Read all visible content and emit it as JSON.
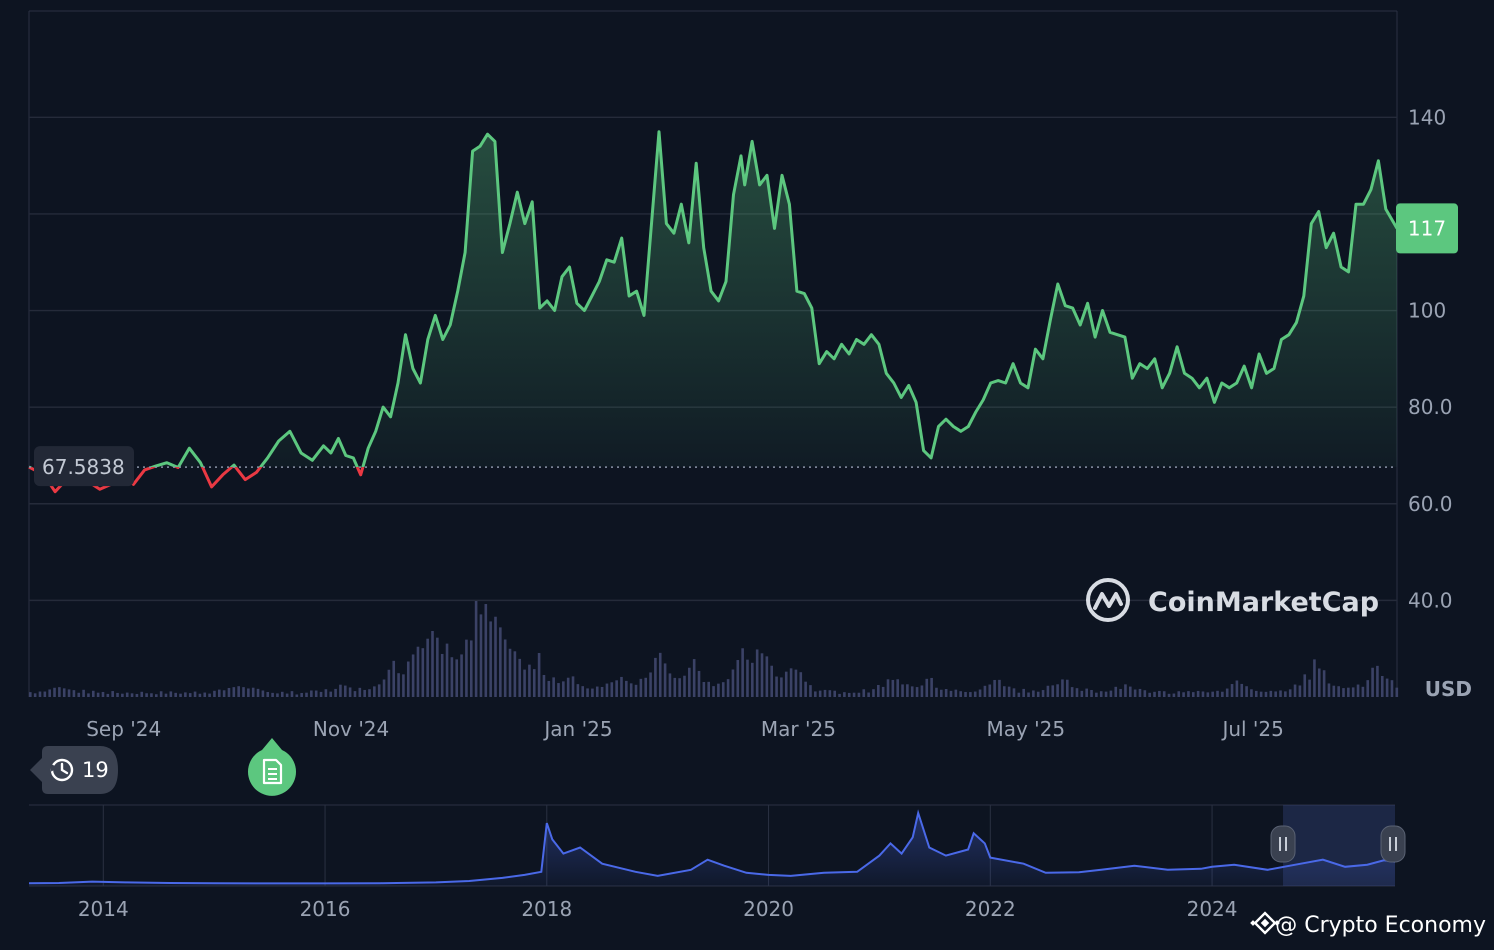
{
  "chart_data": {
    "type": "line",
    "y_axis": {
      "ticks": [
        "40.0",
        "60.0",
        "80.0",
        "100",
        "140"
      ],
      "tick_values": [
        40,
        60,
        80,
        100,
        140
      ],
      "range": [
        20,
        162
      ],
      "unit": "USD",
      "gridlines_at": [
        40,
        60,
        80,
        100,
        120,
        140
      ]
    },
    "x_axis": {
      "ticks": [
        "Sep '24",
        "Nov '24",
        "Jan '25",
        "Mar '25",
        "May '25",
        "Jul '25"
      ],
      "tick_dates": [
        "2024-09-01",
        "2024-11-01",
        "2025-01-01",
        "2025-03-01",
        "2025-05-01",
        "2025-07-01"
      ],
      "range": [
        "2024-08-20",
        "2025-08-22"
      ]
    },
    "reference_price": 67.5838,
    "reference_label": "67.5838",
    "current_price": 117,
    "current_label": "117",
    "colors": {
      "up": "#5cc77f",
      "down": "#ea3943",
      "volume": "#3b4266",
      "navigator": "#4a69e8",
      "badge": "#5cc77f"
    },
    "series": [
      {
        "points": [
          [
            "2024-08-20",
            67.6
          ],
          [
            "2024-08-24",
            66.0
          ],
          [
            "2024-08-27",
            62.5
          ],
          [
            "2024-08-30",
            65.0
          ],
          [
            "2024-09-02",
            66.5
          ],
          [
            "2024-09-05",
            64.5
          ],
          [
            "2024-09-08",
            63.0
          ],
          [
            "2024-09-11",
            64.0
          ],
          [
            "2024-09-14",
            66.5
          ],
          [
            "2024-09-17",
            64.0
          ],
          [
            "2024-09-20",
            67.0
          ],
          [
            "2024-09-23",
            67.8
          ],
          [
            "2024-09-26",
            68.5
          ],
          [
            "2024-09-29",
            67.5
          ],
          [
            "2024-10-02",
            71.5
          ],
          [
            "2024-10-05",
            68.5
          ],
          [
            "2024-10-08",
            63.5
          ],
          [
            "2024-10-11",
            66.0
          ],
          [
            "2024-10-14",
            68.0
          ],
          [
            "2024-10-17",
            65.0
          ],
          [
            "2024-10-20",
            66.5
          ],
          [
            "2024-10-23",
            69.5
          ],
          [
            "2024-10-26",
            73.0
          ],
          [
            "2024-10-29",
            75.0
          ],
          [
            "2024-11-01",
            70.5
          ],
          [
            "2024-11-04",
            69.0
          ],
          [
            "2024-11-07",
            72.0
          ],
          [
            "2024-11-09",
            70.5
          ],
          [
            "2024-11-11",
            73.5
          ],
          [
            "2024-11-13",
            70.0
          ],
          [
            "2024-11-15",
            69.5
          ],
          [
            "2024-11-17",
            66.0
          ],
          [
            "2024-11-19",
            71.5
          ],
          [
            "2024-11-21",
            75.0
          ],
          [
            "2024-11-23",
            80.0
          ],
          [
            "2024-11-25",
            78.0
          ],
          [
            "2024-11-27",
            85.0
          ],
          [
            "2024-11-29",
            95.0
          ],
          [
            "2024-12-01",
            88.0
          ],
          [
            "2024-12-03",
            85.0
          ],
          [
            "2024-12-05",
            94.0
          ],
          [
            "2024-12-07",
            99.0
          ],
          [
            "2024-12-09",
            94.0
          ],
          [
            "2024-12-11",
            97.0
          ],
          [
            "2024-12-13",
            104.0
          ],
          [
            "2024-12-15",
            112.0
          ],
          [
            "2024-12-17",
            133.0
          ],
          [
            "2024-12-19",
            134.0
          ],
          [
            "2024-12-21",
            136.5
          ],
          [
            "2024-12-23",
            135.0
          ],
          [
            "2024-12-25",
            112.0
          ],
          [
            "2024-12-27",
            118.0
          ],
          [
            "2024-12-29",
            124.5
          ],
          [
            "2024-12-31",
            118.0
          ],
          [
            "2025-01-02",
            122.5
          ],
          [
            "2025-01-04",
            100.5
          ],
          [
            "2025-01-06",
            102.0
          ],
          [
            "2025-01-08",
            100.0
          ],
          [
            "2025-01-10",
            107.0
          ],
          [
            "2025-01-12",
            109.0
          ],
          [
            "2025-01-14",
            101.5
          ],
          [
            "2025-01-16",
            100.0
          ],
          [
            "2025-01-18",
            103.0
          ],
          [
            "2025-01-20",
            106.0
          ],
          [
            "2025-01-22",
            110.5
          ],
          [
            "2025-01-24",
            110.0
          ],
          [
            "2025-01-26",
            115.0
          ],
          [
            "2025-01-28",
            103.0
          ],
          [
            "2025-01-30",
            104.0
          ],
          [
            "2025-02-01",
            99.0
          ],
          [
            "2025-02-03",
            118.0
          ],
          [
            "2025-02-05",
            137.0
          ],
          [
            "2025-02-07",
            118.0
          ],
          [
            "2025-02-09",
            116.0
          ],
          [
            "2025-02-11",
            122.0
          ],
          [
            "2025-02-13",
            114.0
          ],
          [
            "2025-02-15",
            130.5
          ],
          [
            "2025-02-17",
            113.0
          ],
          [
            "2025-02-19",
            104.0
          ],
          [
            "2025-02-21",
            102.0
          ],
          [
            "2025-02-23",
            106.0
          ],
          [
            "2025-02-25",
            124.0
          ],
          [
            "2025-02-27",
            132.0
          ],
          [
            "2025-02-28",
            126.0
          ],
          [
            "2025-03-02",
            135.0
          ],
          [
            "2025-03-04",
            126.0
          ],
          [
            "2025-03-06",
            128.0
          ],
          [
            "2025-03-08",
            117.0
          ],
          [
            "2025-03-10",
            128.0
          ],
          [
            "2025-03-12",
            122.0
          ],
          [
            "2025-03-14",
            104.0
          ],
          [
            "2025-03-16",
            103.5
          ],
          [
            "2025-03-18",
            100.5
          ],
          [
            "2025-03-20",
            89.0
          ],
          [
            "2025-03-22",
            91.5
          ],
          [
            "2025-03-24",
            90.0
          ],
          [
            "2025-03-26",
            93.0
          ],
          [
            "2025-03-28",
            91.0
          ],
          [
            "2025-03-30",
            94.0
          ],
          [
            "2025-04-01",
            93.0
          ],
          [
            "2025-04-03",
            95.0
          ],
          [
            "2025-04-05",
            93.0
          ],
          [
            "2025-04-07",
            87.0
          ],
          [
            "2025-04-09",
            85.0
          ],
          [
            "2025-04-11",
            82.0
          ],
          [
            "2025-04-13",
            84.5
          ],
          [
            "2025-04-15",
            81.0
          ],
          [
            "2025-04-17",
            71.0
          ],
          [
            "2025-04-19",
            69.5
          ],
          [
            "2025-04-21",
            76.0
          ],
          [
            "2025-04-23",
            77.5
          ],
          [
            "2025-04-25",
            76.0
          ],
          [
            "2025-04-27",
            75.0
          ],
          [
            "2025-04-29",
            76.0
          ],
          [
            "2025-05-01",
            79.0
          ],
          [
            "2025-05-03",
            81.5
          ],
          [
            "2025-05-05",
            85.0
          ],
          [
            "2025-05-07",
            85.5
          ],
          [
            "2025-05-09",
            85.0
          ],
          [
            "2025-05-11",
            89.0
          ],
          [
            "2025-05-13",
            85.0
          ],
          [
            "2025-05-15",
            84.0
          ],
          [
            "2025-05-17",
            92.0
          ],
          [
            "2025-05-19",
            90.0
          ],
          [
            "2025-05-21",
            98.0
          ],
          [
            "2025-05-23",
            105.5
          ],
          [
            "2025-05-25",
            101.0
          ],
          [
            "2025-05-27",
            100.5
          ],
          [
            "2025-05-29",
            97.0
          ],
          [
            "2025-05-31",
            101.5
          ],
          [
            "2025-06-02",
            94.5
          ],
          [
            "2025-06-04",
            100.0
          ],
          [
            "2025-06-06",
            95.5
          ],
          [
            "2025-06-08",
            95.0
          ],
          [
            "2025-06-10",
            94.5
          ],
          [
            "2025-06-12",
            86.0
          ],
          [
            "2025-06-14",
            89.0
          ],
          [
            "2025-06-16",
            88.0
          ],
          [
            "2025-06-18",
            90.0
          ],
          [
            "2025-06-20",
            84.0
          ],
          [
            "2025-06-22",
            87.0
          ],
          [
            "2025-06-24",
            92.5
          ],
          [
            "2025-06-26",
            87.0
          ],
          [
            "2025-06-28",
            86.0
          ],
          [
            "2025-06-30",
            84.0
          ],
          [
            "2025-07-02",
            86.0
          ],
          [
            "2025-07-04",
            81.0
          ],
          [
            "2025-07-06",
            85.0
          ],
          [
            "2025-07-08",
            84.0
          ],
          [
            "2025-07-10",
            85.0
          ],
          [
            "2025-07-12",
            88.5
          ],
          [
            "2025-07-14",
            84.0
          ],
          [
            "2025-07-16",
            91.0
          ],
          [
            "2025-07-18",
            87.0
          ],
          [
            "2025-07-20",
            88.0
          ],
          [
            "2025-07-22",
            94.0
          ],
          [
            "2025-07-24",
            95.0
          ],
          [
            "2025-07-26",
            97.5
          ],
          [
            "2025-07-28",
            103.0
          ],
          [
            "2025-07-30",
            118.0
          ],
          [
            "2025-08-01",
            120.5
          ],
          [
            "2025-08-03",
            113.0
          ],
          [
            "2025-08-05",
            116.0
          ],
          [
            "2025-08-07",
            109.0
          ],
          [
            "2025-08-09",
            108.0
          ],
          [
            "2025-08-11",
            122.0
          ],
          [
            "2025-08-13",
            122.0
          ],
          [
            "2025-08-15",
            125.0
          ],
          [
            "2025-08-17",
            131.0
          ],
          [
            "2025-08-19",
            121.0
          ],
          [
            "2025-08-22",
            117.0
          ]
        ]
      }
    ]
  },
  "volume_spikes": [
    [
      "2024-08-28",
      0.9
    ],
    [
      "2024-10-15",
      1.1
    ],
    [
      "2024-11-12",
      1.0
    ],
    [
      "2024-11-25",
      2.5
    ],
    [
      "2024-12-01",
      4.0
    ],
    [
      "2024-12-06",
      5.0
    ],
    [
      "2024-12-10",
      3.4
    ],
    [
      "2024-12-18",
      9.3
    ],
    [
      "2024-12-22",
      6.7
    ],
    [
      "2024-12-27",
      4.2
    ],
    [
      "2025-01-03",
      3.5
    ],
    [
      "2025-01-12",
      2.0
    ],
    [
      "2025-01-25",
      2.2
    ],
    [
      "2025-02-04",
      5.0
    ],
    [
      "2025-02-14",
      3.3
    ],
    [
      "2025-02-27",
      4.0
    ],
    [
      "2025-03-04",
      4.5
    ],
    [
      "2025-03-12",
      3.8
    ],
    [
      "2025-04-08",
      1.8
    ],
    [
      "2025-04-18",
      2.0
    ],
    [
      "2025-05-06",
      1.5
    ],
    [
      "2025-05-24",
      2.0
    ],
    [
      "2025-06-10",
      1.2
    ],
    [
      "2025-07-10",
      1.3
    ],
    [
      "2025-07-31",
      4.0
    ],
    [
      "2025-08-16",
      3.8
    ]
  ],
  "navigator": {
    "ticks": [
      "2014",
      "2016",
      "2018",
      "2020",
      "2022",
      "2024"
    ],
    "tick_years": [
      2014,
      2016,
      2018,
      2020,
      2022,
      2024
    ],
    "range_years": [
      2013.33,
      2025.65
    ],
    "selection_years": [
      2024.64,
      2025.65
    ],
    "points": [
      [
        2013.33,
        4
      ],
      [
        2013.6,
        5
      ],
      [
        2013.9,
        12
      ],
      [
        2014.2,
        8
      ],
      [
        2014.6,
        5
      ],
      [
        2015.0,
        4
      ],
      [
        2015.5,
        3
      ],
      [
        2016.0,
        3
      ],
      [
        2016.5,
        4
      ],
      [
        2017.0,
        8
      ],
      [
        2017.3,
        15
      ],
      [
        2017.6,
        30
      ],
      [
        2017.8,
        45
      ],
      [
        2017.95,
        60
      ],
      [
        2018.0,
        300
      ],
      [
        2018.05,
        220
      ],
      [
        2018.15,
        150
      ],
      [
        2018.3,
        180
      ],
      [
        2018.5,
        100
      ],
      [
        2018.8,
        60
      ],
      [
        2019.0,
        40
      ],
      [
        2019.3,
        70
      ],
      [
        2019.45,
        120
      ],
      [
        2019.6,
        90
      ],
      [
        2019.8,
        55
      ],
      [
        2020.0,
        45
      ],
      [
        2020.2,
        40
      ],
      [
        2020.5,
        55
      ],
      [
        2020.8,
        60
      ],
      [
        2021.0,
        140
      ],
      [
        2021.1,
        200
      ],
      [
        2021.2,
        150
      ],
      [
        2021.3,
        230
      ],
      [
        2021.35,
        350
      ],
      [
        2021.45,
        180
      ],
      [
        2021.6,
        140
      ],
      [
        2021.8,
        170
      ],
      [
        2021.85,
        250
      ],
      [
        2021.95,
        200
      ],
      [
        2022.0,
        130
      ],
      [
        2022.3,
        100
      ],
      [
        2022.5,
        55
      ],
      [
        2022.8,
        58
      ],
      [
        2023.0,
        70
      ],
      [
        2023.3,
        90
      ],
      [
        2023.6,
        70
      ],
      [
        2023.9,
        75
      ],
      [
        2024.0,
        85
      ],
      [
        2024.2,
        95
      ],
      [
        2024.5,
        70
      ],
      [
        2024.8,
        100
      ],
      [
        2025.0,
        120
      ],
      [
        2025.2,
        85
      ],
      [
        2025.4,
        95
      ],
      [
        2025.55,
        117
      ],
      [
        2025.65,
        110
      ]
    ]
  },
  "watermark": {
    "brand": "CoinMarketCap"
  },
  "history_badge": {
    "count": "19",
    "icon": "history-icon"
  },
  "event_marker": {
    "icon": "document-icon"
  },
  "credit": {
    "text": "@ Crypto Economy",
    "icon": "binance-diamond-icon"
  }
}
